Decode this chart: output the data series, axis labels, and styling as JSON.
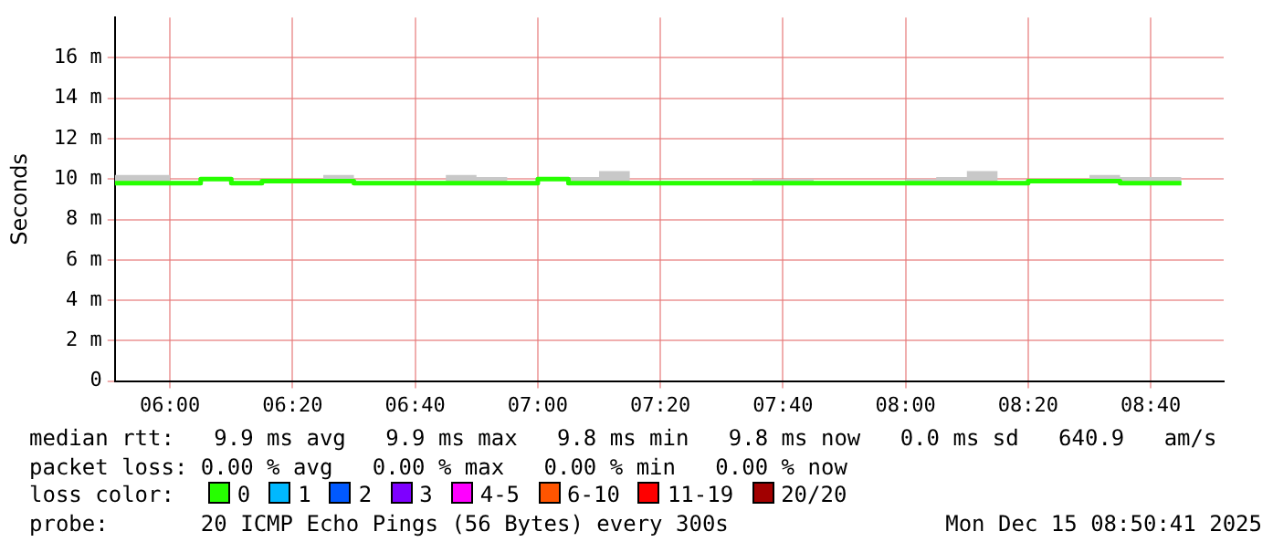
{
  "chart_data": {
    "type": "step",
    "ylabel": "Seconds",
    "legend_title": "loss color:",
    "legend": "bottom",
    "grid": true,
    "marker": "none",
    "x": [
      5.85,
      6,
      6.0833,
      6.1667,
      6.25,
      6.4167,
      6.5,
      6.75,
      6.8333,
      6.9167,
      7,
      7.0833,
      7.1667,
      7.25,
      7.5833,
      7.75,
      8,
      8.0833,
      8.1667,
      8.25,
      8.3333,
      8.5,
      8.5833,
      8.75
    ],
    "xlim": [
      5.85,
      8.865
    ],
    "xticks": [
      {
        "value": 6,
        "label": "06:00"
      },
      {
        "value": 6.3333,
        "label": "06:20"
      },
      {
        "value": 6.6667,
        "label": "06:40"
      },
      {
        "value": 7,
        "label": "07:00"
      },
      {
        "value": 7.3333,
        "label": "07:20"
      },
      {
        "value": 7.6667,
        "label": "07:40"
      },
      {
        "value": 8,
        "label": "08:00"
      },
      {
        "value": 8.3333,
        "label": "08:20"
      },
      {
        "value": 8.6667,
        "label": "08:40"
      }
    ],
    "ylim": [
      0,
      18
    ],
    "yticks": [
      0,
      {
        "value": 2,
        "label": "2 m"
      },
      {
        "value": 4,
        "label": "4 m"
      },
      {
        "value": 6,
        "label": "6 m"
      },
      {
        "value": 8,
        "label": "8 m"
      },
      {
        "value": 10,
        "label": "10 m"
      },
      {
        "value": 12,
        "label": "12 m"
      },
      {
        "value": 14,
        "label": "14 m"
      },
      {
        "value": 16,
        "label": "16 m"
      }
    ],
    "series": [
      {
        "name": "0",
        "color": "#26ff00",
        "values": [
          9.8,
          9.8,
          10,
          9.8,
          9.9,
          9.9,
          9.8,
          9.8,
          9.8,
          9.8,
          10,
          9.8,
          9.8,
          9.8,
          9.8,
          9.8,
          9.8,
          9.8,
          9.8,
          9.8,
          9.9,
          9.9,
          9.8,
          9.8
        ],
        "lower": [
          9.8,
          9.8,
          10,
          9.8,
          9.9,
          9.9,
          9.8,
          9.8,
          9.8,
          9.8,
          10,
          9.8,
          9.8,
          9.8,
          9.8,
          9.8,
          9.8,
          9.8,
          9.8,
          9.8,
          9.9,
          9.9,
          9.8,
          9.8
        ],
        "upper": [
          10.2,
          9.9,
          10,
          9.9,
          10,
          10.2,
          9.9,
          10.2,
          10.1,
          9.9,
          10,
          10.1,
          10.4,
          9.9,
          10,
          9.9,
          10,
          10.1,
          10.4,
          9.9,
          10,
          10.2,
          10.1,
          10.1
        ]
      },
      {
        "name": "1",
        "color": "#00b8ff",
        "values": [
          null,
          null,
          null,
          null,
          null,
          null,
          null,
          null,
          null,
          null,
          null,
          null,
          null,
          null,
          null,
          null,
          null,
          null,
          null,
          null,
          null,
          null,
          null,
          null
        ]
      },
      {
        "name": "2",
        "color": "#0059ff",
        "values": [
          null,
          null,
          null,
          null,
          null,
          null,
          null,
          null,
          null,
          null,
          null,
          null,
          null,
          null,
          null,
          null,
          null,
          null,
          null,
          null,
          null,
          null,
          null,
          null
        ]
      },
      {
        "name": "3",
        "color": "#7e00ff",
        "values": [
          null,
          null,
          null,
          null,
          null,
          null,
          null,
          null,
          null,
          null,
          null,
          null,
          null,
          null,
          null,
          null,
          null,
          null,
          null,
          null,
          null,
          null,
          null,
          null
        ]
      },
      {
        "name": "4-5",
        "color": "#ff00ff",
        "values": [
          null,
          null,
          null,
          null,
          null,
          null,
          null,
          null,
          null,
          null,
          null,
          null,
          null,
          null,
          null,
          null,
          null,
          null,
          null,
          null,
          null,
          null,
          null,
          null
        ]
      },
      {
        "name": "6-10",
        "color": "#ff5500",
        "values": [
          null,
          null,
          null,
          null,
          null,
          null,
          null,
          null,
          null,
          null,
          null,
          null,
          null,
          null,
          null,
          null,
          null,
          null,
          null,
          null,
          null,
          null,
          null,
          null
        ]
      },
      {
        "name": "11-19",
        "color": "#ff0000",
        "values": [
          null,
          null,
          null,
          null,
          null,
          null,
          null,
          null,
          null,
          null,
          null,
          null,
          null,
          null,
          null,
          null,
          null,
          null,
          null,
          null,
          null,
          null,
          null,
          null
        ]
      },
      {
        "name": "20/20",
        "color": "#a10000",
        "values": [
          null,
          null,
          null,
          null,
          null,
          null,
          null,
          null,
          null,
          null,
          null,
          null,
          null,
          null,
          null,
          null,
          null,
          null,
          null,
          null,
          null,
          null,
          null,
          null
        ]
      }
    ],
    "annotations": [
      "median rtt:   9.9 ms avg   9.9 ms max   9.8 ms min   9.8 ms now   0.0 ms sd   640.9   am/s",
      "packet loss: 0.00 % avg   0.00 % max   0.00 % min   0.00 % now",
      "probe:       20 ICMP Echo Pings (56 Bytes) every 300s"
    ],
    "subtitle": "Mon Dec 15 08:50:41 2025"
  }
}
